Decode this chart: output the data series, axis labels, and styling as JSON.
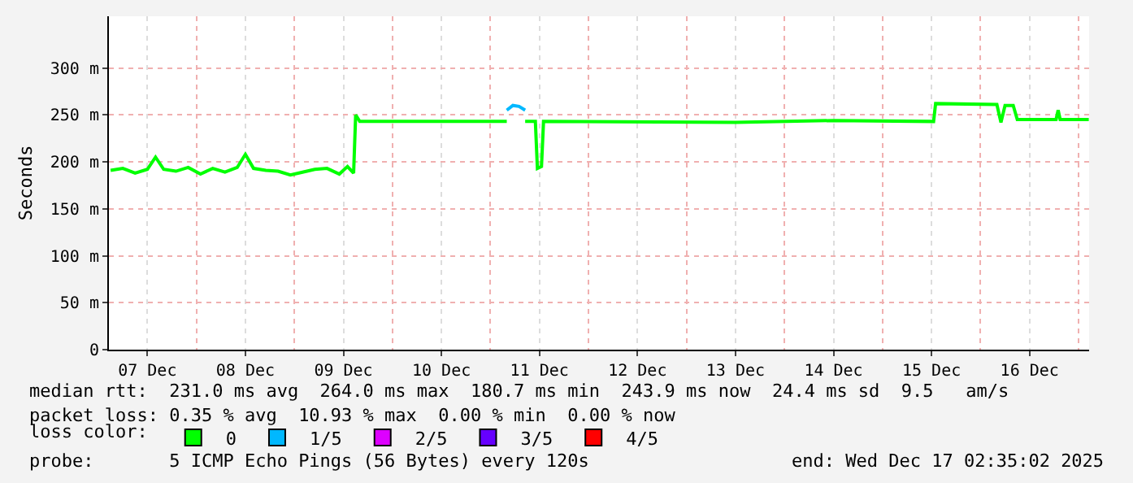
{
  "chart_data": {
    "type": "line",
    "ylabel": "Seconds",
    "legend_title": "loss color:",
    "legend": "bottom",
    "grid": true,
    "marker": "none",
    "line_style": "solid",
    "xlim": [
      "2025-12-07T02:35",
      "2025-12-17T02:35"
    ],
    "xticks": [
      {
        "value": "2025-12-07T12:00",
        "label": "07 Dec"
      },
      {
        "value": "2025-12-08T12:00",
        "label": "08 Dec"
      },
      {
        "value": "2025-12-09T12:00",
        "label": "09 Dec"
      },
      {
        "value": "2025-12-10T12:00",
        "label": "10 Dec"
      },
      {
        "value": "2025-12-11T12:00",
        "label": "11 Dec"
      },
      {
        "value": "2025-12-12T12:00",
        "label": "12 Dec"
      },
      {
        "value": "2025-12-13T12:00",
        "label": "13 Dec"
      },
      {
        "value": "2025-12-14T12:00",
        "label": "14 Dec"
      },
      {
        "value": "2025-12-15T12:00",
        "label": "15 Dec"
      },
      {
        "value": "2025-12-16T12:00",
        "label": "16 Dec"
      }
    ],
    "ylim": [
      0,
      355
    ],
    "yticks": [
      0,
      {
        "value": 50,
        "label": "50 m"
      },
      {
        "value": 100,
        "label": "100 m"
      },
      {
        "value": 150,
        "label": "150 m"
      },
      {
        "value": 200,
        "label": "200 m"
      },
      {
        "value": 250,
        "label": "250 m"
      },
      {
        "value": 300,
        "label": "300 m"
      }
    ],
    "series": [
      {
        "name": "0",
        "color": "#00ff00",
        "x": [
          "2025-12-07T03:00",
          "2025-12-07T06:00",
          "2025-12-07T09:00",
          "2025-12-07T12:00",
          "2025-12-07T14:00",
          "2025-12-07T16:00",
          "2025-12-07T19:00",
          "2025-12-07T22:00",
          "2025-12-08T01:00",
          "2025-12-08T04:00",
          "2025-12-08T07:00",
          "2025-12-08T10:00",
          "2025-12-08T12:00",
          "2025-12-08T14:00",
          "2025-12-08T17:00",
          "2025-12-08T20:00",
          "2025-12-08T23:00",
          "2025-12-09T02:00",
          "2025-12-09T05:00",
          "2025-12-09T08:00",
          "2025-12-09T11:00",
          "2025-12-09T13:00",
          "2025-12-09T14:30",
          "2025-12-09T15:00",
          "2025-12-09T16:00",
          "2025-12-10T12:00",
          "2025-12-11T04:00",
          "2025-12-11T05:00",
          "2025-12-11T07:30",
          "2025-12-11T08:30",
          "2025-12-11T11:00",
          "2025-12-11T11:30",
          "2025-12-11T12:30",
          "2025-12-11T13:00",
          "2025-12-13T12:00",
          "2025-12-14T12:00",
          "2025-12-15T12:30",
          "2025-12-15T13:00",
          "2025-12-16T04:00",
          "2025-12-16T05:00",
          "2025-12-16T06:00",
          "2025-12-16T08:00",
          "2025-12-16T09:00",
          "2025-12-16T18:30",
          "2025-12-16T19:00",
          "2025-12-16T19:30",
          "2025-12-17T02:30"
        ],
        "values": [
          191,
          193,
          188,
          192,
          205,
          192,
          190,
          194,
          187,
          193,
          189,
          194,
          208,
          193,
          191,
          190,
          186,
          189,
          192,
          193,
          187,
          195,
          188,
          250,
          243,
          243,
          243,
          null,
          null,
          243,
          243,
          193,
          195,
          243,
          242,
          244,
          243,
          262,
          261,
          242,
          260,
          260,
          245,
          245,
          255,
          245,
          245
        ]
      },
      {
        "name": "1/5",
        "color": "#00b8ff",
        "x": [
          "2025-12-11T04:00",
          "2025-12-11T05:30",
          "2025-12-11T07:00",
          "2025-12-11T08:30"
        ],
        "values": [
          255,
          260,
          259,
          255
        ]
      },
      {
        "name": "2/5",
        "color": "#dd00ff"
      },
      {
        "name": "3/5",
        "color": "#6600ff"
      },
      {
        "name": "4/5",
        "color": "#ff0000"
      }
    ],
    "annotations": [
      "median rtt:  231.0 ms avg  264.0 ms max  180.7 ms min  243.9 ms now  24.4 ms sd  9.5   am/s",
      "packet loss: 0.35 % avg  10.93 % max  0.00 % min  0.00 % now",
      "probe:       5 ICMP Echo Pings (56 Bytes) every 120s",
      "end: Wed Dec 17 02:35:02 2025"
    ]
  }
}
